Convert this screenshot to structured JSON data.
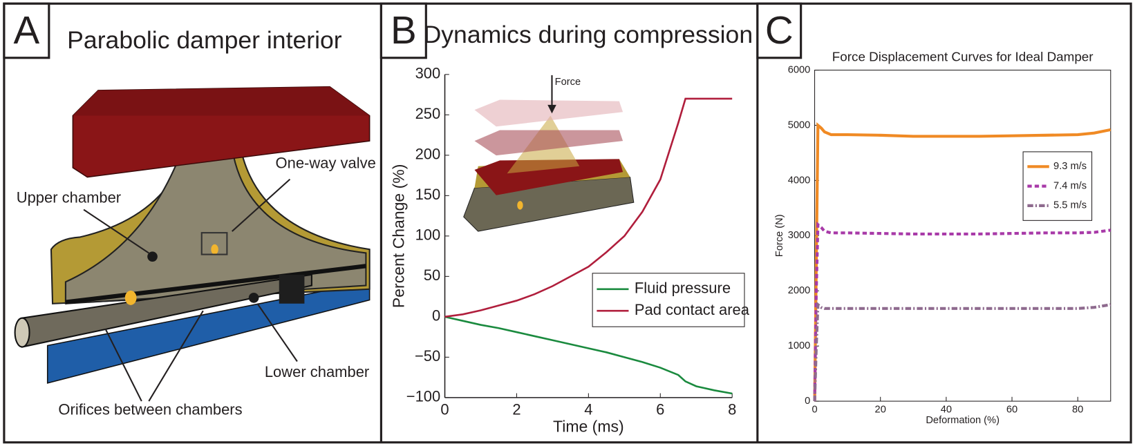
{
  "panels": {
    "letters": [
      "A",
      "B",
      "C"
    ]
  },
  "diagram": {
    "title": "Parabolic damper interior",
    "labels": [
      "Upper chamber",
      "One-way valve",
      "Lower chamber",
      "Orifices between chambers"
    ]
  },
  "panel_b_title": "Dynamics during compression",
  "inset": {
    "label": "Force"
  },
  "chart_data": [
    {
      "type": "line",
      "xlabel": "Time (ms)",
      "ylabel": "Percent Change (%)",
      "x": [
        0,
        0.5,
        1,
        1.5,
        2,
        2.5,
        3,
        3.5,
        4,
        4.5,
        5,
        5.5,
        6,
        6.5,
        6.7,
        7,
        7.5,
        8
      ],
      "series": [
        {
          "name": "Fluid pressure",
          "color": "#1a8a3e",
          "linestyle": "solid",
          "values": [
            0,
            -5,
            -10,
            -14,
            -19,
            -24,
            -29,
            -34,
            -39,
            -44,
            -50,
            -56,
            -63,
            -72,
            -80,
            -86,
            -91,
            -95
          ]
        },
        {
          "name": "Pad contact area",
          "color": "#b01e3c",
          "linestyle": "solid",
          "values": [
            0,
            3,
            8,
            14,
            20,
            28,
            38,
            50,
            62,
            80,
            100,
            130,
            170,
            240,
            270,
            270,
            270,
            270
          ]
        }
      ],
      "xlim": [
        0,
        8
      ],
      "xticks": [
        0,
        2,
        4,
        6,
        8
      ],
      "ylim": [
        -100,
        300
      ],
      "yticks": [
        {
          "value": -100,
          "label": "−100"
        },
        {
          "value": -50,
          "label": "−50"
        },
        0,
        50,
        100,
        150,
        200,
        250,
        300
      ],
      "frame": false,
      "legend": "lower right"
    },
    {
      "type": "line",
      "title": "Force Displacement Curves for Ideal Damper",
      "xlabel": "Deformation (%)",
      "ylabel": "Force (N)",
      "x": [
        0,
        0.5,
        1,
        2,
        3,
        5,
        10,
        20,
        30,
        40,
        50,
        60,
        70,
        80,
        85,
        90
      ],
      "series": [
        {
          "name": "9.3 m/s",
          "color": "#f08a24",
          "linestyle": "solid",
          "values": [
            0,
            2500,
            5000,
            4950,
            4880,
            4830,
            4830,
            4820,
            4800,
            4800,
            4800,
            4810,
            4820,
            4830,
            4860,
            4920
          ]
        },
        {
          "name": "7.4 m/s",
          "color": "#a83aa8",
          "linestyle": "dashed",
          "values": [
            0,
            2000,
            3200,
            3150,
            3080,
            3050,
            3050,
            3040,
            3030,
            3030,
            3030,
            3040,
            3050,
            3050,
            3060,
            3100
          ]
        },
        {
          "name": "5.5 m/s",
          "color": "#8e6a8e",
          "linestyle": "dashdot",
          "values": [
            0,
            1000,
            1750,
            1700,
            1680,
            1680,
            1680,
            1680,
            1680,
            1680,
            1680,
            1680,
            1680,
            1680,
            1700,
            1750
          ]
        }
      ],
      "xlim": [
        0,
        90
      ],
      "xticks": [
        0,
        20,
        40,
        60,
        80
      ],
      "ylim": [
        0,
        6000
      ],
      "yticks": [
        0,
        1000,
        2000,
        3000,
        4000,
        5000,
        6000
      ],
      "frame": true,
      "legend": "upper right"
    }
  ]
}
